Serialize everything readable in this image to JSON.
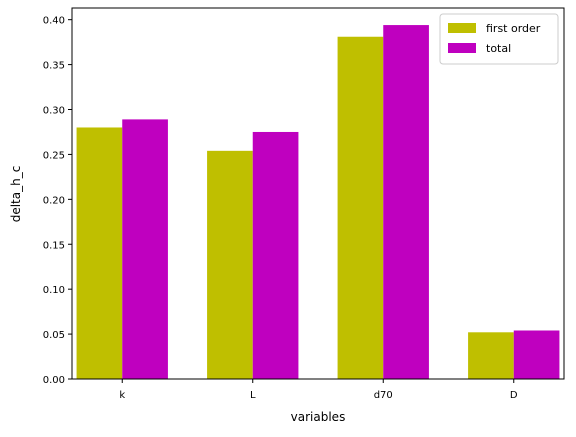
{
  "chart_data": {
    "type": "bar",
    "title": "",
    "xlabel": "variables",
    "ylabel": "delta_h_c",
    "categories": [
      "k",
      "L",
      "d70",
      "D"
    ],
    "series": [
      {
        "name": "first order",
        "color": "#bfbf00",
        "values": [
          0.28,
          0.254,
          0.381,
          0.052
        ]
      },
      {
        "name": "total",
        "color": "#bf00bf",
        "values": [
          0.289,
          0.275,
          0.394,
          0.054
        ]
      }
    ],
    "ylim": [
      0,
      0.413
    ],
    "yticks": [
      "0.00",
      "0.05",
      "0.10",
      "0.15",
      "0.20",
      "0.25",
      "0.30",
      "0.35",
      "0.40"
    ],
    "grid": false,
    "legend_position": "top-right"
  }
}
